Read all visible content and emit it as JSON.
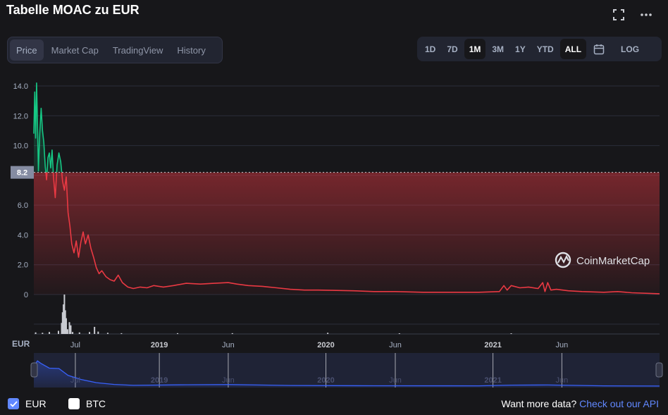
{
  "title": "Tabelle MOAC zu EUR",
  "icons": {
    "expand": "fullscreen-icon",
    "more": "more-dots-icon",
    "calendar": "calendar-icon",
    "logo": "coinmarketcap-logo"
  },
  "tabs": [
    {
      "label": "Price",
      "active": true
    },
    {
      "label": "Market Cap",
      "active": false
    },
    {
      "label": "TradingView",
      "active": false
    },
    {
      "label": "History",
      "active": false
    }
  ],
  "ranges": [
    {
      "label": "1D",
      "active": false
    },
    {
      "label": "7D",
      "active": false
    },
    {
      "label": "1M",
      "active": true
    },
    {
      "label": "3M",
      "active": false
    },
    {
      "label": "1Y",
      "active": false
    },
    {
      "label": "YTD",
      "active": false
    },
    {
      "label": "ALL",
      "active": true
    }
  ],
  "log_label": "LOG",
  "watermark": "CoinMarketCap",
  "legend": [
    {
      "label": "EUR",
      "checked": true
    },
    {
      "label": "BTC",
      "checked": false
    }
  ],
  "api": {
    "text": "Want more data?",
    "link": "Check out our API"
  },
  "colors": {
    "up": "#16c784",
    "down": "#ea3943",
    "navigator": "#3861fb",
    "link": "#6188ff"
  },
  "chart_data": {
    "type": "line",
    "currency_label": "EUR",
    "y_ticks": [
      "0",
      "2.0",
      "4.0",
      "6.0",
      "8.0",
      "10.0",
      "12.0",
      "14.0"
    ],
    "ylim": [
      0,
      14.5
    ],
    "baseline_value": 8.2,
    "baseline_label": "8.2",
    "x_tick_labels": [
      {
        "date": "2018-07-01",
        "label": "Jul",
        "bold": false
      },
      {
        "date": "2019-01-01",
        "label": "2019",
        "bold": true
      },
      {
        "date": "2019-06-01",
        "label": "Jun",
        "bold": false
      },
      {
        "date": "2020-01-01",
        "label": "2020",
        "bold": true
      },
      {
        "date": "2020-06-01",
        "label": "Jun",
        "bold": false
      },
      {
        "date": "2021-01-01",
        "label": "2021",
        "bold": true
      },
      {
        "date": "2021-06-01",
        "label": "Jun",
        "bold": false
      }
    ],
    "x_range": [
      "2018-04-01",
      "2022-01-01"
    ],
    "series": [
      {
        "points": [
          [
            "2018-04-01",
            10.8
          ],
          [
            "2018-04-03",
            13.6
          ],
          [
            "2018-04-05",
            10.5
          ],
          [
            "2018-04-07",
            14.2
          ],
          [
            "2018-04-09",
            11.5
          ],
          [
            "2018-04-11",
            8.3
          ],
          [
            "2018-04-14",
            10.8
          ],
          [
            "2018-04-17",
            12.5
          ],
          [
            "2018-04-20",
            11.0
          ],
          [
            "2018-04-23",
            10.2
          ],
          [
            "2018-04-26",
            8.6
          ],
          [
            "2018-04-29",
            7.7
          ],
          [
            "2018-05-02",
            9.2
          ],
          [
            "2018-05-05",
            9.5
          ],
          [
            "2018-05-08",
            8.5
          ],
          [
            "2018-05-11",
            9.7
          ],
          [
            "2018-05-14",
            7.9
          ],
          [
            "2018-05-18",
            6.5
          ],
          [
            "2018-05-22",
            8.7
          ],
          [
            "2018-05-26",
            9.5
          ],
          [
            "2018-05-30",
            8.9
          ],
          [
            "2018-06-03",
            7.6
          ],
          [
            "2018-06-07",
            7.0
          ],
          [
            "2018-06-11",
            7.9
          ],
          [
            "2018-06-15",
            5.5
          ],
          [
            "2018-06-19",
            4.6
          ],
          [
            "2018-06-23",
            3.4
          ],
          [
            "2018-06-28",
            2.8
          ],
          [
            "2018-07-03",
            3.6
          ],
          [
            "2018-07-08",
            2.5
          ],
          [
            "2018-07-13",
            3.5
          ],
          [
            "2018-07-18",
            4.2
          ],
          [
            "2018-07-23",
            3.4
          ],
          [
            "2018-07-29",
            4.0
          ],
          [
            "2018-08-04",
            3.1
          ],
          [
            "2018-08-10",
            2.5
          ],
          [
            "2018-08-16",
            1.8
          ],
          [
            "2018-08-22",
            1.4
          ],
          [
            "2018-08-28",
            1.6
          ],
          [
            "2018-09-06",
            1.2
          ],
          [
            "2018-09-15",
            1.0
          ],
          [
            "2018-09-24",
            0.9
          ],
          [
            "2018-10-03",
            1.3
          ],
          [
            "2018-10-12",
            0.8
          ],
          [
            "2018-10-24",
            0.5
          ],
          [
            "2018-11-05",
            0.4
          ],
          [
            "2018-11-20",
            0.5
          ],
          [
            "2018-12-05",
            0.45
          ],
          [
            "2018-12-20",
            0.6
          ],
          [
            "2019-01-10",
            0.5
          ],
          [
            "2019-02-01",
            0.6
          ],
          [
            "2019-03-01",
            0.75
          ],
          [
            "2019-04-01",
            0.7
          ],
          [
            "2019-05-01",
            0.75
          ],
          [
            "2019-06-01",
            0.8
          ],
          [
            "2019-06-20",
            0.7
          ],
          [
            "2019-07-15",
            0.6
          ],
          [
            "2019-08-15",
            0.55
          ],
          [
            "2019-09-15",
            0.45
          ],
          [
            "2019-10-15",
            0.35
          ],
          [
            "2019-11-15",
            0.3
          ],
          [
            "2019-12-15",
            0.3
          ],
          [
            "2020-01-15",
            0.28
          ],
          [
            "2020-03-01",
            0.25
          ],
          [
            "2020-04-15",
            0.2
          ],
          [
            "2020-06-01",
            0.2
          ],
          [
            "2020-08-01",
            0.15
          ],
          [
            "2020-10-01",
            0.15
          ],
          [
            "2020-12-01",
            0.15
          ],
          [
            "2021-01-15",
            0.2
          ],
          [
            "2021-01-25",
            0.6
          ],
          [
            "2021-02-01",
            0.3
          ],
          [
            "2021-02-10",
            0.6
          ],
          [
            "2021-03-01",
            0.45
          ],
          [
            "2021-03-20",
            0.5
          ],
          [
            "2021-04-10",
            0.4
          ],
          [
            "2021-04-20",
            0.8
          ],
          [
            "2021-04-25",
            0.2
          ],
          [
            "2021-05-01",
            0.8
          ],
          [
            "2021-05-08",
            0.3
          ],
          [
            "2021-05-20",
            0.35
          ],
          [
            "2021-06-15",
            0.25
          ],
          [
            "2021-07-15",
            0.2
          ],
          [
            "2021-09-01",
            0.15
          ],
          [
            "2021-10-01",
            0.2
          ],
          [
            "2021-11-01",
            0.12
          ],
          [
            "2022-01-01",
            0.05
          ]
        ]
      }
    ],
    "volume": [
      [
        "2018-04-05",
        0.04
      ],
      [
        "2018-04-20",
        0.03
      ],
      [
        "2018-05-05",
        0.05
      ],
      [
        "2018-05-25",
        0.08
      ],
      [
        "2018-06-01",
        0.28
      ],
      [
        "2018-06-03",
        0.55
      ],
      [
        "2018-06-05",
        0.75
      ],
      [
        "2018-06-07",
        1.0
      ],
      [
        "2018-06-09",
        0.6
      ],
      [
        "2018-06-11",
        0.4
      ],
      [
        "2018-06-14",
        0.12
      ],
      [
        "2018-06-18",
        0.3
      ],
      [
        "2018-06-21",
        0.22
      ],
      [
        "2018-06-25",
        0.05
      ],
      [
        "2018-07-10",
        0.04
      ],
      [
        "2018-08-01",
        0.05
      ],
      [
        "2018-08-12",
        0.18
      ],
      [
        "2018-08-20",
        0.06
      ],
      [
        "2018-09-10",
        0.03
      ],
      [
        "2018-10-10",
        0.02
      ],
      [
        "2019-02-10",
        0.02
      ],
      [
        "2019-06-10",
        0.02
      ],
      [
        "2020-01-05",
        0.03
      ],
      [
        "2020-06-10",
        0.01
      ],
      [
        "2021-02-10",
        0.01
      ]
    ],
    "navigator_points": [
      [
        "2018-04-01",
        10.5
      ],
      [
        "2018-04-09",
        13.2
      ],
      [
        "2018-04-17",
        11.8
      ],
      [
        "2018-05-05",
        9.4
      ],
      [
        "2018-05-26",
        9.2
      ],
      [
        "2018-06-15",
        5.6
      ],
      [
        "2018-07-13",
        3.5
      ],
      [
        "2018-08-16",
        1.8
      ],
      [
        "2018-09-24",
        0.9
      ],
      [
        "2018-11-05",
        0.4
      ],
      [
        "2019-03-01",
        0.7
      ],
      [
        "2019-06-01",
        0.8
      ],
      [
        "2019-10-15",
        0.35
      ],
      [
        "2020-04-15",
        0.2
      ],
      [
        "2020-12-01",
        0.15
      ],
      [
        "2021-02-10",
        0.5
      ],
      [
        "2021-05-01",
        0.6
      ],
      [
        "2021-09-01",
        0.15
      ],
      [
        "2022-01-01",
        0.05
      ]
    ]
  }
}
